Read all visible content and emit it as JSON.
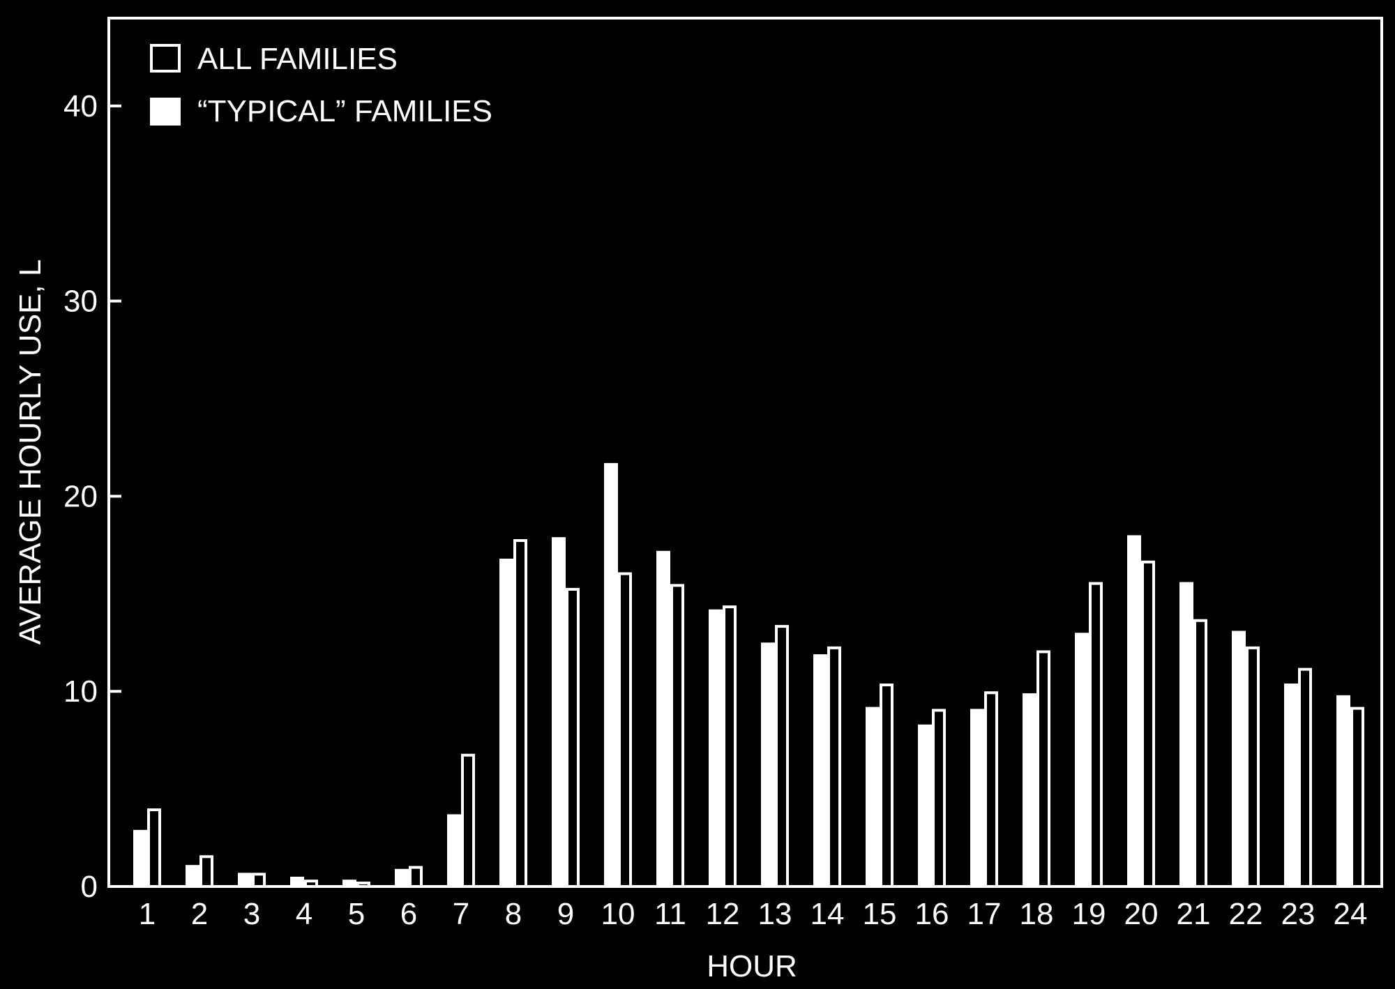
{
  "colors": {
    "background": "#000000",
    "foreground": "#ffffff"
  },
  "chart_data": {
    "type": "bar",
    "xlabel": "HOUR",
    "ylabel": "AVERAGE HOURLY USE, L",
    "ylim": [
      0,
      44.5
    ],
    "yticks": [
      0,
      10,
      20,
      30,
      40
    ],
    "grid": false,
    "legend_position": "top-left",
    "categories": [
      "1",
      "2",
      "3",
      "4",
      "5",
      "6",
      "7",
      "8",
      "9",
      "10",
      "11",
      "12",
      "13",
      "14",
      "15",
      "16",
      "17",
      "18",
      "19",
      "20",
      "21",
      "22",
      "23",
      "24"
    ],
    "series": [
      {
        "name": "“TYPICAL” FAMILIES",
        "style": "filled",
        "values": [
          2.9,
          1.1,
          0.7,
          0.5,
          0.35,
          0.9,
          3.7,
          16.8,
          17.9,
          21.7,
          17.2,
          14.2,
          12.5,
          11.9,
          9.2,
          8.3,
          9.1,
          9.9,
          13.0,
          18.0,
          15.6,
          13.1,
          10.4,
          9.8
        ]
      },
      {
        "name": "ALL FAMILIES",
        "style": "outline",
        "values": [
          4.0,
          1.6,
          0.7,
          0.35,
          0.25,
          1.05,
          6.8,
          17.8,
          15.3,
          16.1,
          15.5,
          14.4,
          13.4,
          12.3,
          10.4,
          9.1,
          10.0,
          12.1,
          15.6,
          16.7,
          13.7,
          12.3,
          11.2,
          9.2
        ]
      }
    ]
  }
}
